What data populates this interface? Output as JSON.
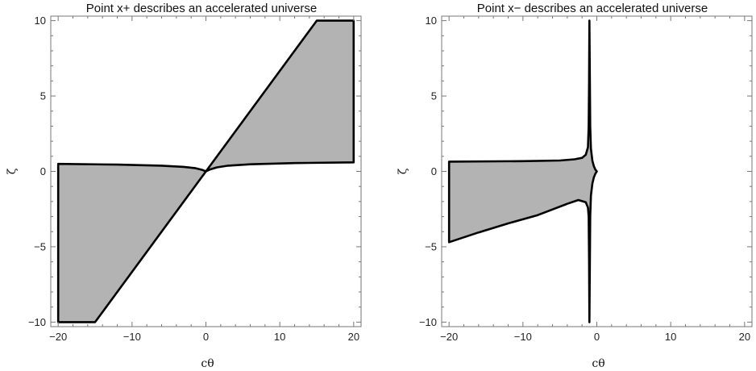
{
  "chart_data": [
    {
      "type": "area",
      "title": "Point x+ describes an accelerated universe",
      "xlabel": "cθ",
      "ylabel": "ζ",
      "xlim": [
        -21,
        21
      ],
      "ylim": [
        -10.3,
        10.3
      ],
      "xticks": [
        -20,
        -10,
        0,
        10,
        20
      ],
      "xtick_labels": [
        "−20",
        "−10",
        "0",
        "10",
        "20"
      ],
      "yticks": [
        -10,
        -5,
        0,
        5,
        10
      ],
      "ytick_labels": [
        "−10",
        "−5",
        "0",
        "5",
        "10"
      ],
      "grid": false,
      "fill_color": "#b3b3b3",
      "edge_color": "#000000",
      "regions": [
        {
          "points": [
            [
              -20,
              0.5
            ],
            [
              -12,
              0.45
            ],
            [
              -6,
              0.38
            ],
            [
              -3,
              0.3
            ],
            [
              -1.5,
              0.22
            ],
            [
              -0.5,
              0.1
            ],
            [
              0,
              0
            ],
            [
              -15,
              -10
            ],
            [
              -20,
              -10
            ]
          ]
        },
        {
          "points": [
            [
              0,
              0
            ],
            [
              15,
              10
            ],
            [
              20,
              10
            ],
            [
              20,
              0.6
            ],
            [
              12,
              0.55
            ],
            [
              6,
              0.47
            ],
            [
              3,
              0.38
            ],
            [
              1.5,
              0.27
            ],
            [
              0.5,
              0.12
            ]
          ]
        }
      ]
    },
    {
      "type": "area",
      "title": "Point x− describes an accelerated universe",
      "xlabel": "cθ",
      "ylabel": "ζ",
      "xlim": [
        -21,
        21
      ],
      "ylim": [
        -10.3,
        10.3
      ],
      "xticks": [
        -20,
        -10,
        0,
        10,
        20
      ],
      "xtick_labels": [
        "−20",
        "−10",
        "0",
        "10",
        "20"
      ],
      "yticks": [
        -10,
        -5,
        0,
        5,
        10
      ],
      "ytick_labels": [
        "−10",
        "−5",
        "0",
        "5",
        "10"
      ],
      "grid": false,
      "fill_color": "#b3b3b3",
      "edge_color": "#000000",
      "regions": [
        {
          "points": [
            [
              -20,
              0.65
            ],
            [
              -10,
              0.68
            ],
            [
              -5,
              0.72
            ],
            [
              -3,
              0.8
            ],
            [
              -2,
              0.9
            ],
            [
              -1.5,
              1.1
            ],
            [
              -1.2,
              1.6
            ],
            [
              -1.1,
              3
            ],
            [
              -1.05,
              6
            ],
            [
              -1.0,
              10
            ],
            [
              -0.9,
              3
            ],
            [
              -0.8,
              1.5
            ],
            [
              -0.6,
              0.7
            ],
            [
              -0.4,
              0.35
            ],
            [
              -0.2,
              0.12
            ],
            [
              0,
              0
            ],
            [
              -0.2,
              -0.15
            ],
            [
              -0.4,
              -0.4
            ],
            [
              -0.6,
              -0.8
            ],
            [
              -0.8,
              -1.6
            ],
            [
              -0.9,
              -3
            ],
            [
              -1.0,
              -10
            ],
            [
              -1.05,
              -6
            ],
            [
              -1.1,
              -3
            ],
            [
              -1.2,
              -2.4
            ],
            [
              -1.5,
              -2.05
            ],
            [
              -2.5,
              -1.9
            ],
            [
              -4,
              -2.15
            ],
            [
              -8,
              -2.9
            ],
            [
              -12,
              -3.45
            ],
            [
              -16,
              -4.05
            ],
            [
              -20,
              -4.7
            ]
          ]
        }
      ]
    }
  ]
}
